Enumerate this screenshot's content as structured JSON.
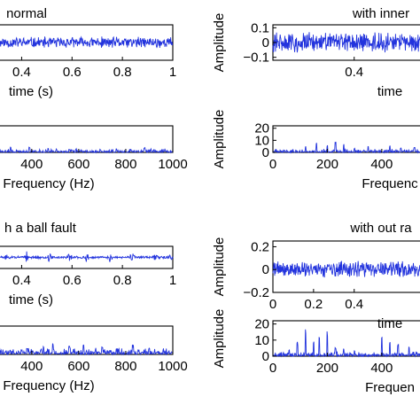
{
  "chart_data": [
    {
      "type": "line",
      "title": "normal",
      "xlabel": "time (s)",
      "ylabel": "",
      "xlim": [
        0.3,
        1.0
      ],
      "ylim": [
        -0.1,
        0.1
      ],
      "xticks": [
        0.4,
        0.6,
        0.8,
        1.0
      ],
      "xtick_labels": [
        "0.4",
        "0.6",
        "0.8",
        "1"
      ],
      "yticks": [],
      "ytick_labels": [],
      "signal": {
        "kind": "noise",
        "amplitude": 0.035,
        "seed": 11
      },
      "color": "#2233dd"
    },
    {
      "type": "line",
      "title": "",
      "xlabel": "Frequency (Hz)",
      "ylabel": "",
      "xlim": [
        250,
        1000
      ],
      "ylim": [
        0,
        20
      ],
      "xticks": [
        400,
        600,
        800,
        1000
      ],
      "xtick_labels": [
        "400",
        "600",
        "800",
        "1000"
      ],
      "yticks": [],
      "ytick_labels": [],
      "signal": {
        "kind": "spectrum",
        "base": 1.5,
        "peaks": [
          [
            310,
            5
          ],
          [
            390,
            4
          ],
          [
            470,
            3
          ],
          [
            560,
            2.5
          ],
          [
            760,
            3
          ],
          [
            880,
            4
          ],
          [
            920,
            2.5
          ]
        ],
        "seed": 21
      },
      "color": "#2233dd"
    },
    {
      "type": "line",
      "title": "with inner",
      "xlabel": "time",
      "ylabel": "Amplitude",
      "xlim": [
        0,
        0.75
      ],
      "ylim": [
        -0.12,
        0.12
      ],
      "xticks": [
        0.4
      ],
      "xtick_labels": [
        "0.4"
      ],
      "yticks": [
        0.1,
        0,
        -0.1
      ],
      "ytick_labels": [
        "0.1",
        "0",
        "−0.1"
      ],
      "signal": {
        "kind": "noise",
        "amplitude": 0.075,
        "seed": 31
      },
      "color": "#2233dd"
    },
    {
      "type": "line",
      "title": "",
      "xlabel": "Frequenc",
      "ylabel": "Amplitude",
      "xlim": [
        0,
        560
      ],
      "ylim": [
        0,
        22
      ],
      "xticks": [
        0,
        200,
        400
      ],
      "xtick_labels": [
        "0",
        "200",
        "400"
      ],
      "yticks": [
        20,
        10,
        0
      ],
      "ytick_labels": [
        "20",
        "10",
        "0"
      ],
      "signal": {
        "kind": "spectrum",
        "base": 1.5,
        "peaks": [
          [
            120,
            6
          ],
          [
            160,
            8
          ],
          [
            200,
            6
          ],
          [
            230,
            10
          ],
          [
            260,
            7
          ],
          [
            300,
            4
          ],
          [
            350,
            6
          ],
          [
            430,
            6
          ],
          [
            470,
            4
          ],
          [
            520,
            5
          ]
        ],
        "seed": 41
      },
      "color": "#2233dd"
    },
    {
      "type": "line",
      "title": "h a ball fault",
      "xlabel": "time (s)",
      "ylabel": "",
      "xlim": [
        0.3,
        1.0
      ],
      "ylim": [
        -0.1,
        0.1
      ],
      "xticks": [
        0.4,
        0.6,
        0.8,
        1.0
      ],
      "xtick_labels": [
        "0.4",
        "0.6",
        "0.8",
        "1"
      ],
      "yticks": [],
      "ytick_labels": [],
      "signal": {
        "kind": "bursts",
        "amplitude": 0.012,
        "burst_amplitude": 0.045,
        "bursts": [
          0.34,
          0.42,
          0.51,
          0.59,
          0.66,
          0.75,
          0.84,
          0.93,
          0.99
        ],
        "seed": 51
      },
      "color": "#2233dd"
    },
    {
      "type": "line",
      "title": "",
      "xlabel": "Frequency (Hz)",
      "ylabel": "",
      "xlim": [
        250,
        1000
      ],
      "ylim": [
        0,
        20
      ],
      "xticks": [
        400,
        600,
        800,
        1000
      ],
      "xtick_labels": [
        "400",
        "600",
        "800",
        "1000"
      ],
      "yticks": [],
      "ytick_labels": [],
      "signal": {
        "kind": "spectrum",
        "base": 2.5,
        "peaks": [
          [
            380,
            5
          ],
          [
            450,
            6
          ],
          [
            490,
            9
          ],
          [
            560,
            6
          ],
          [
            620,
            7
          ],
          [
            700,
            6
          ],
          [
            760,
            5
          ],
          [
            830,
            7
          ],
          [
            900,
            5
          ],
          [
            960,
            4
          ]
        ],
        "seed": 61
      },
      "color": "#2233dd"
    },
    {
      "type": "line",
      "title": "with out ra",
      "xlabel": "time",
      "ylabel": "Amplitude",
      "xlim": [
        0,
        0.75
      ],
      "ylim": [
        -0.2,
        0.25
      ],
      "xticks": [
        0,
        0.2,
        0.4
      ],
      "xtick_labels": [
        "0",
        "0.2",
        "0.4"
      ],
      "yticks": [
        0.2,
        0,
        -0.2
      ],
      "ytick_labels": [
        "0.2",
        "0",
        "−0.2"
      ],
      "signal": {
        "kind": "noise",
        "amplitude": 0.08,
        "seed": 71
      },
      "color": "#2233dd"
    },
    {
      "type": "line",
      "title": "",
      "xlabel": "Frequen",
      "ylabel": "Amplitude",
      "xlim": [
        0,
        560
      ],
      "ylim": [
        0,
        22
      ],
      "xticks": [
        0,
        200,
        400
      ],
      "xtick_labels": [
        "0",
        "200",
        "400"
      ],
      "yticks": [
        20,
        10,
        0
      ],
      "ytick_labels": [
        "20",
        "10",
        "0"
      ],
      "signal": {
        "kind": "spectrum",
        "base": 1.5,
        "peaks": [
          [
            60,
            4
          ],
          [
            90,
            9
          ],
          [
            120,
            18
          ],
          [
            150,
            10
          ],
          [
            170,
            14
          ],
          [
            200,
            16
          ],
          [
            230,
            6
          ],
          [
            260,
            5
          ],
          [
            300,
            4
          ],
          [
            400,
            12
          ],
          [
            430,
            10
          ],
          [
            460,
            8
          ],
          [
            500,
            6
          ]
        ],
        "seed": 81
      },
      "color": "#2233dd"
    }
  ]
}
